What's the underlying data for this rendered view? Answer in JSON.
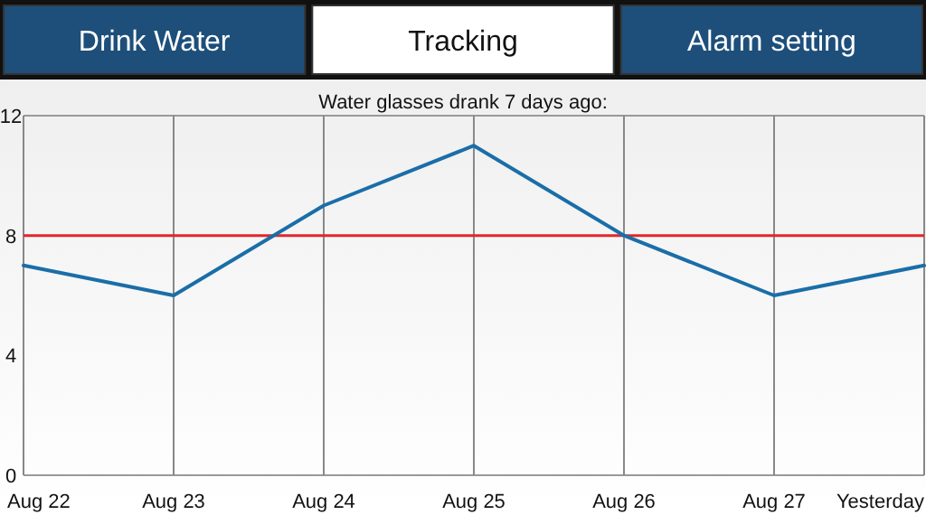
{
  "chart_data": {
    "type": "line",
    "title": "Water glasses drank 7 days ago:",
    "annotations": [
      "Drink Water",
      "Tracking",
      "Alarm setting"
    ],
    "categories": [
      "Aug 22",
      "Aug 23",
      "Aug 24",
      "Aug 25",
      "Aug 26",
      "Aug 27",
      "Yesterday"
    ],
    "series": [
      {
        "color": "#1a6ea8",
        "values": [
          7,
          6,
          9,
          11,
          8,
          6,
          7
        ]
      }
    ],
    "ylim": [
      0,
      12
    ],
    "yticks": [
      0,
      4,
      8,
      12
    ],
    "grid": "x",
    "ref_lines": [
      {
        "axis": "y",
        "value": 8,
        "color": "#e0262a"
      }
    ]
  }
}
